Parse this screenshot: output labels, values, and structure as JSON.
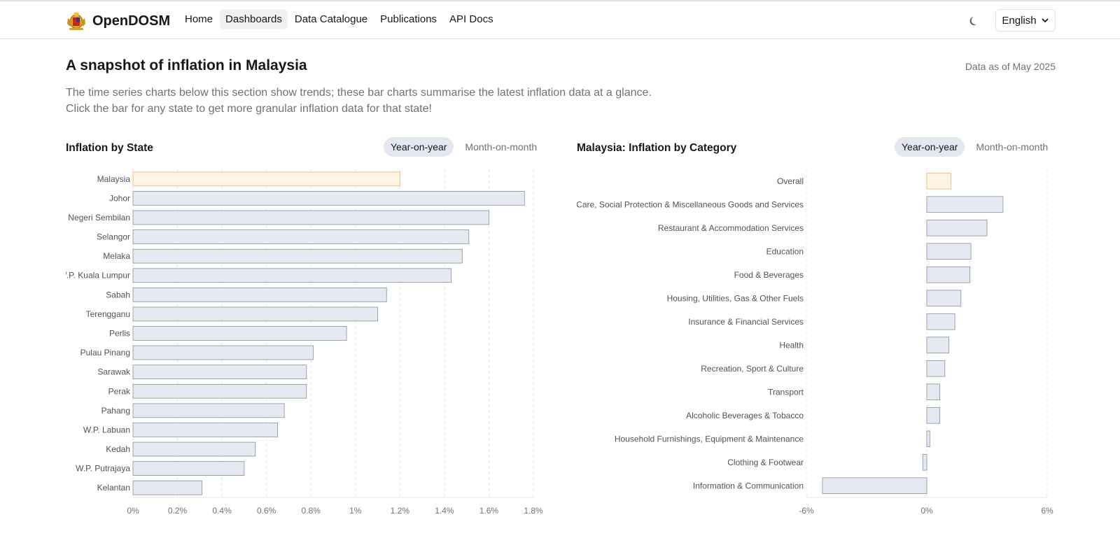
{
  "header": {
    "brand": "OpenDOSM",
    "nav": [
      {
        "label": "Home",
        "active": false
      },
      {
        "label": "Dashboards",
        "active": true
      },
      {
        "label": "Data Catalogue",
        "active": false
      },
      {
        "label": "Publications",
        "active": false
      },
      {
        "label": "API Docs",
        "active": false
      }
    ],
    "theme_icon": "moon-icon",
    "language": "English"
  },
  "page": {
    "title": "A snapshot of inflation in Malaysia",
    "as_of": "Data as of May 2025",
    "description_line1": "The time series charts below this section show trends; these bar charts summarise the latest inflation data at a glance.",
    "description_line2": "Click the bar for any state to get more granular inflation data for that state!"
  },
  "colors": {
    "highlight_fill": "#fef3e4",
    "highlight_stroke": "#f0b46a",
    "bar_fill": "#e4e9f2",
    "bar_stroke": "#8a8f99",
    "grid": "#e4e4e7"
  },
  "chart_data": [
    {
      "type": "bar",
      "orientation": "horizontal",
      "title": "Inflation by State",
      "toggles": [
        "Year-on-year",
        "Month-on-month"
      ],
      "active_toggle": "Year-on-year",
      "categories": [
        "Malaysia",
        "Johor",
        "Negeri Sembilan",
        "Selangor",
        "Melaka",
        "W.P. Kuala Lumpur",
        "Sabah",
        "Terengganu",
        "Perlis",
        "Pulau Pinang",
        "Sarawak",
        "Perak",
        "Pahang",
        "W.P. Labuan",
        "Kedah",
        "W.P. Putrajaya",
        "Kelantan"
      ],
      "values": [
        1.2,
        1.76,
        1.6,
        1.51,
        1.48,
        1.43,
        1.14,
        1.1,
        0.96,
        0.81,
        0.78,
        0.78,
        0.68,
        0.65,
        0.55,
        0.5,
        0.31
      ],
      "highlight": "Malaysia",
      "xlim": [
        0,
        1.8
      ],
      "ticks": [
        0,
        0.2,
        0.4,
        0.6,
        0.8,
        1.0,
        1.2,
        1.4,
        1.6,
        1.8
      ],
      "tick_labels": [
        "0%",
        "0.2%",
        "0.4%",
        "0.6%",
        "0.8%",
        "1%",
        "1.2%",
        "1.4%",
        "1.6%",
        "1.8%"
      ],
      "grid": true
    },
    {
      "type": "bar",
      "orientation": "horizontal",
      "title": "Malaysia: Inflation by Category",
      "toggles": [
        "Year-on-year",
        "Month-on-month"
      ],
      "active_toggle": "Year-on-year",
      "categories": [
        "Overall",
        "Personal Care, Social Protection & Miscellaneous Goods and Services",
        "Restaurant & Accommodation Services",
        "Education",
        "Food & Beverages",
        "Housing, Utilities, Gas & Other Fuels",
        "Insurance & Financial Services",
        "Health",
        "Recreation, Sport & Culture",
        "Transport",
        "Alcoholic Beverages & Tobacco",
        "Household Furnishings, Equipment & Maintenance",
        "Clothing & Footwear",
        "Information & Communication"
      ],
      "values": [
        1.2,
        3.8,
        3.0,
        2.2,
        2.15,
        1.7,
        1.4,
        1.1,
        0.9,
        0.65,
        0.65,
        0.15,
        -0.2,
        -5.2
      ],
      "highlight": "Overall",
      "xlim": [
        -6,
        6
      ],
      "ticks": [
        -6,
        0,
        6
      ],
      "tick_labels": [
        "-6%",
        "0%",
        "6%"
      ],
      "grid": true
    }
  ]
}
